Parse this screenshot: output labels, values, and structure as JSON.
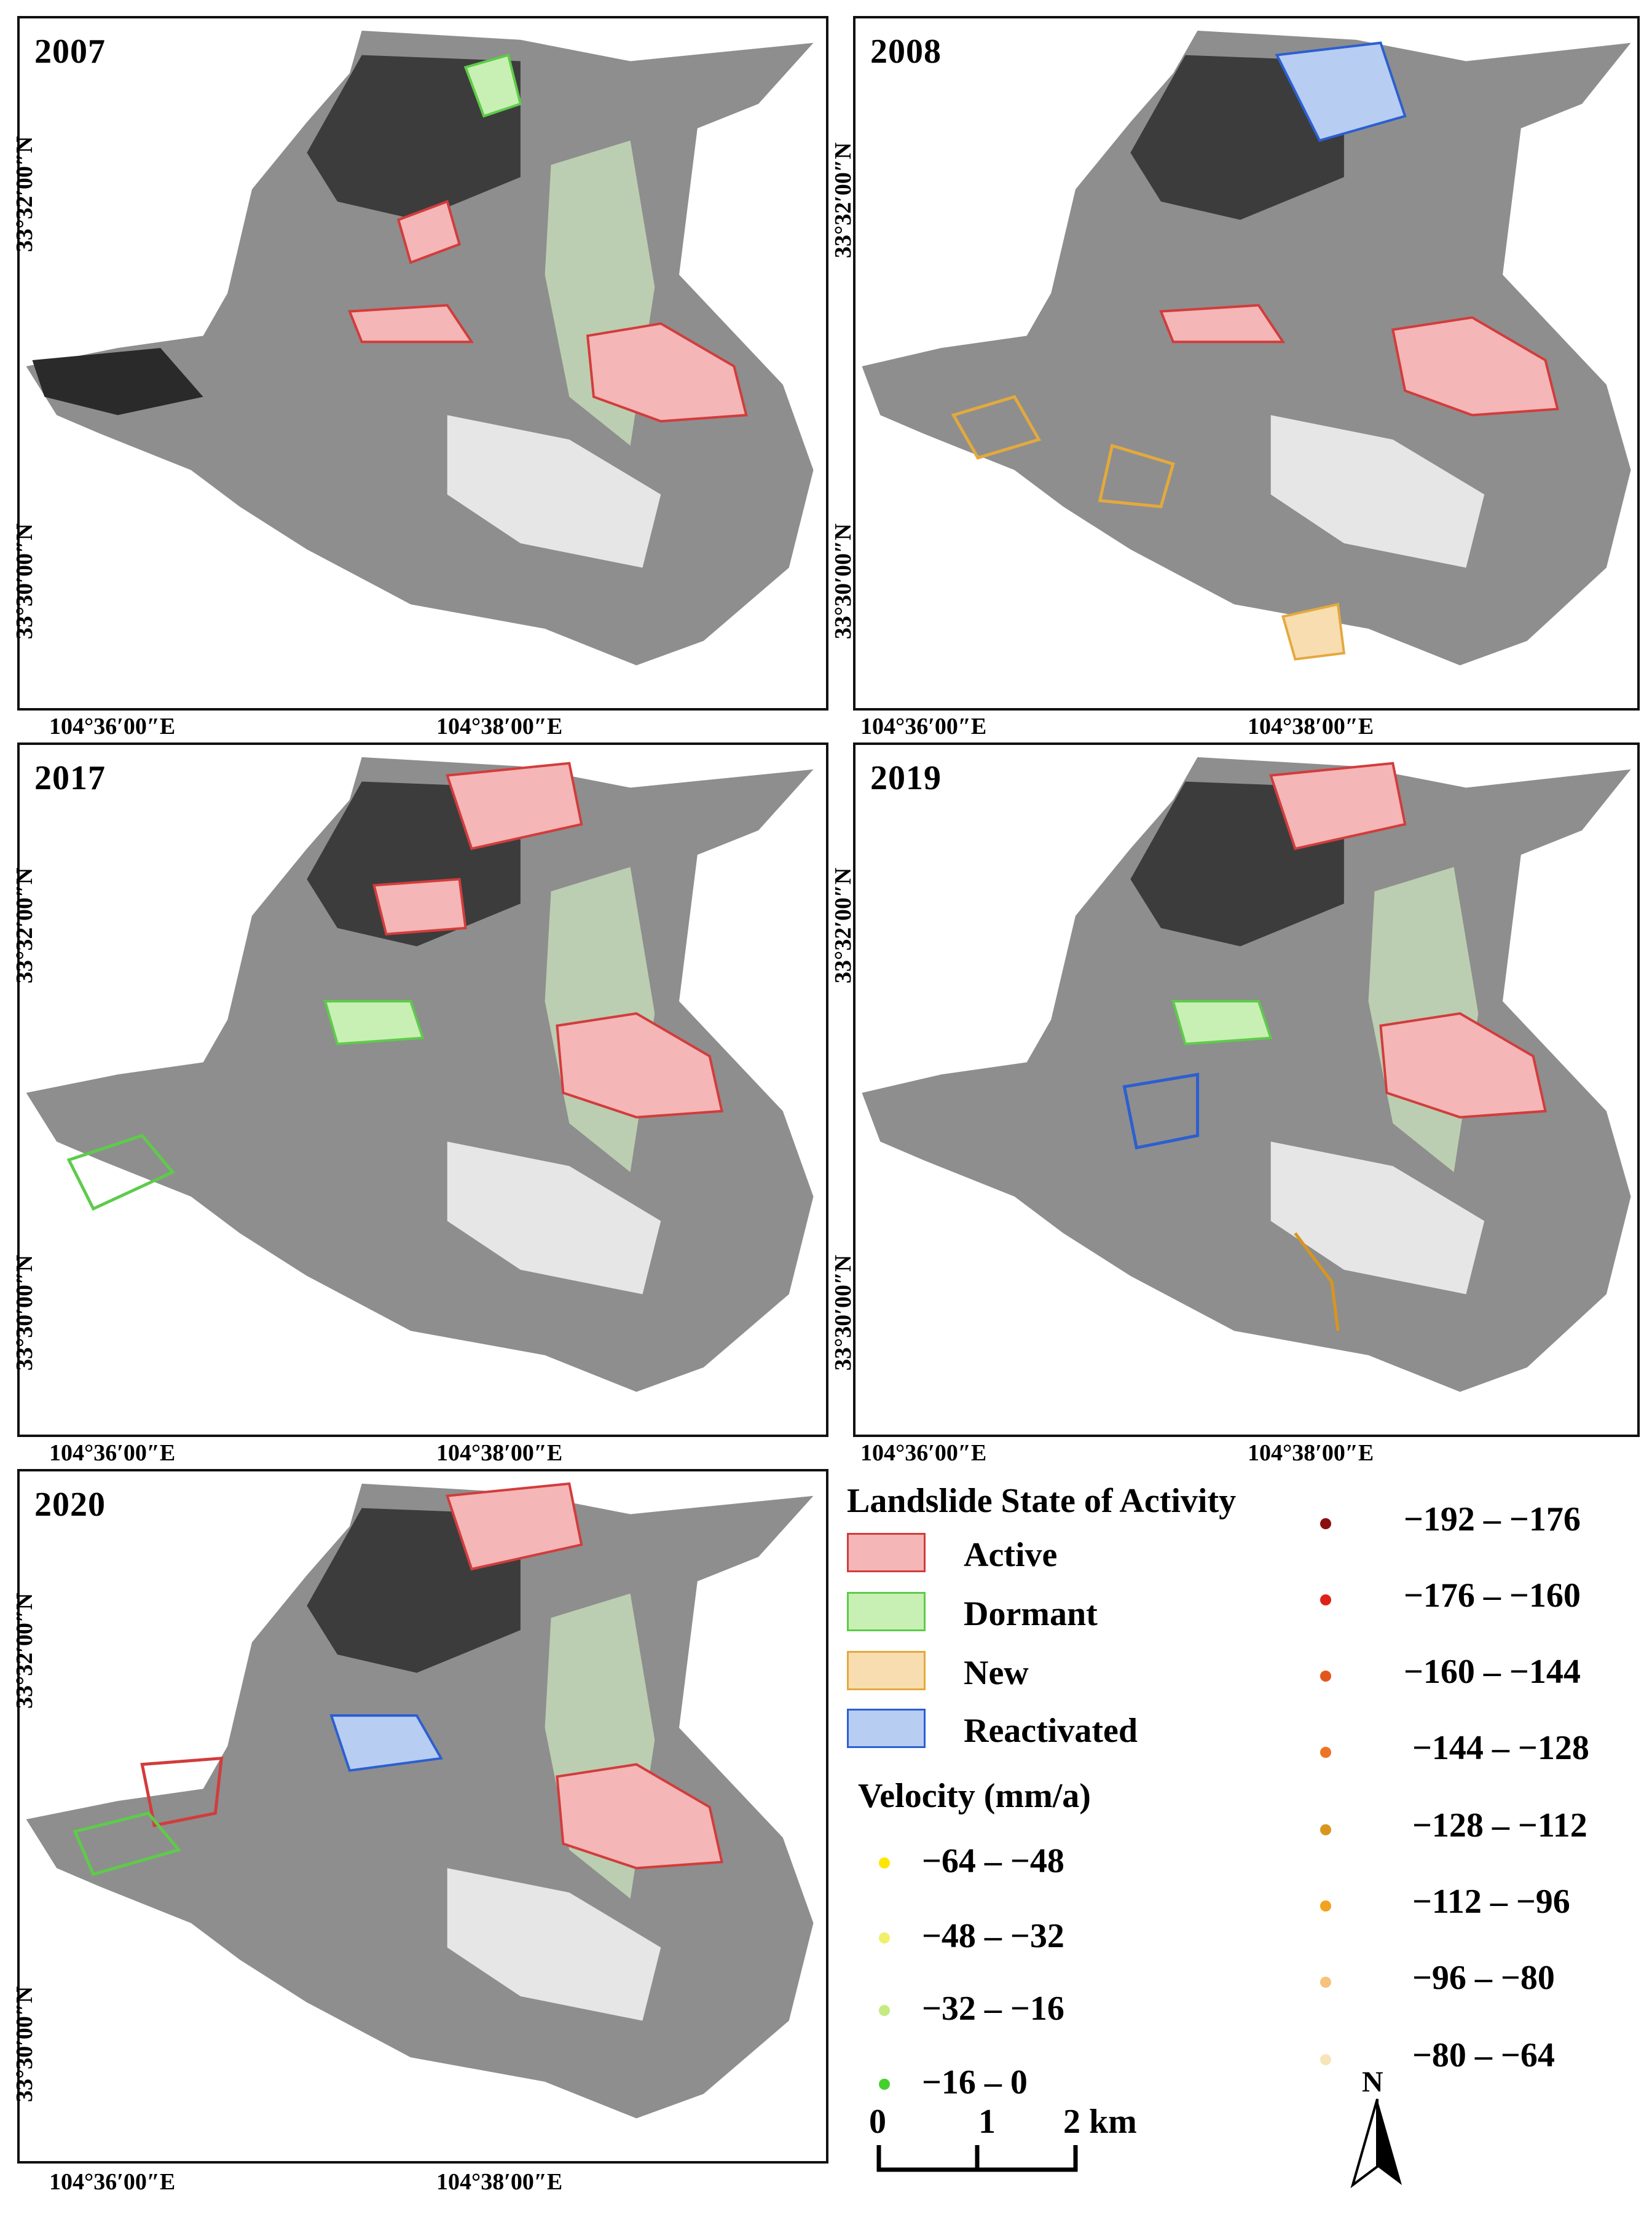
{
  "panels": [
    {
      "year": "2007",
      "lat_top": "33°32′00″N",
      "lat_bottom": "33°30′00″N",
      "lon_left": "104°36′00″E",
      "lon_right": "104°38′00″E"
    },
    {
      "year": "2008",
      "lat_top": "33°32′00″N",
      "lat_bottom": "33°30′00″N",
      "lon_left": "104°36′00″E",
      "lon_right": "104°38′00″E"
    },
    {
      "year": "2017",
      "lat_top": "33°32′00″N",
      "lat_bottom": "33°30′00″N",
      "lon_left": "104°36′00″E",
      "lon_right": "104°38′00″E"
    },
    {
      "year": "2019",
      "lat_top": "33°32′00″N",
      "lat_bottom": "33°30′00″N",
      "lon_left": "104°36′00″E",
      "lon_right": "104°38′00″E"
    },
    {
      "year": "2020",
      "lat_top": "33°32′00″N",
      "lat_bottom": "33°30′00″N",
      "lon_left": "104°36′00″E",
      "lon_right": "104°38′00″E"
    }
  ],
  "legend": {
    "state_title": "Landslide State of Activity",
    "states": [
      {
        "label": "Active",
        "fill": "#f4b6b6",
        "stroke": "#d23c3c"
      },
      {
        "label": "Dormant",
        "fill": "#c8f0b4",
        "stroke": "#5ecb4a"
      },
      {
        "label": "New",
        "fill": "#f7ddb0",
        "stroke": "#e3a93e"
      },
      {
        "label": "Reactivated",
        "fill": "#b7cdf2",
        "stroke": "#2c5fd0"
      }
    ],
    "velocity_title": "Velocity (mm/a)",
    "velocity_left": [
      {
        "label": "−64 – −48",
        "color": "#ffe600"
      },
      {
        "label": "−48 – −32",
        "color": "#f2ef6a"
      },
      {
        "label": "−32 – −16",
        "color": "#c6ea82"
      },
      {
        "label": "−16 – 0",
        "color": "#45d12c"
      }
    ],
    "velocity_right": [
      {
        "label": "−192 – −176",
        "color": "#8b0f0f"
      },
      {
        "label": "−176 – −160",
        "color": "#e0201a"
      },
      {
        "label": "−160 – −144",
        "color": "#e4571c"
      },
      {
        "label": "−144 – −128",
        "color": "#ee7326"
      },
      {
        "label": "−128 – −112",
        "color": "#d8961e"
      },
      {
        "label": "−112 – −96",
        "color": "#f2a21c"
      },
      {
        "label": "−96 – −80",
        "color": "#f6c27c"
      },
      {
        "label": "−80 – −64",
        "color": "#f7e4b8"
      }
    ],
    "scale": {
      "tick0": "0",
      "tick1": "1",
      "tick2": "2 km"
    },
    "north": "N"
  }
}
